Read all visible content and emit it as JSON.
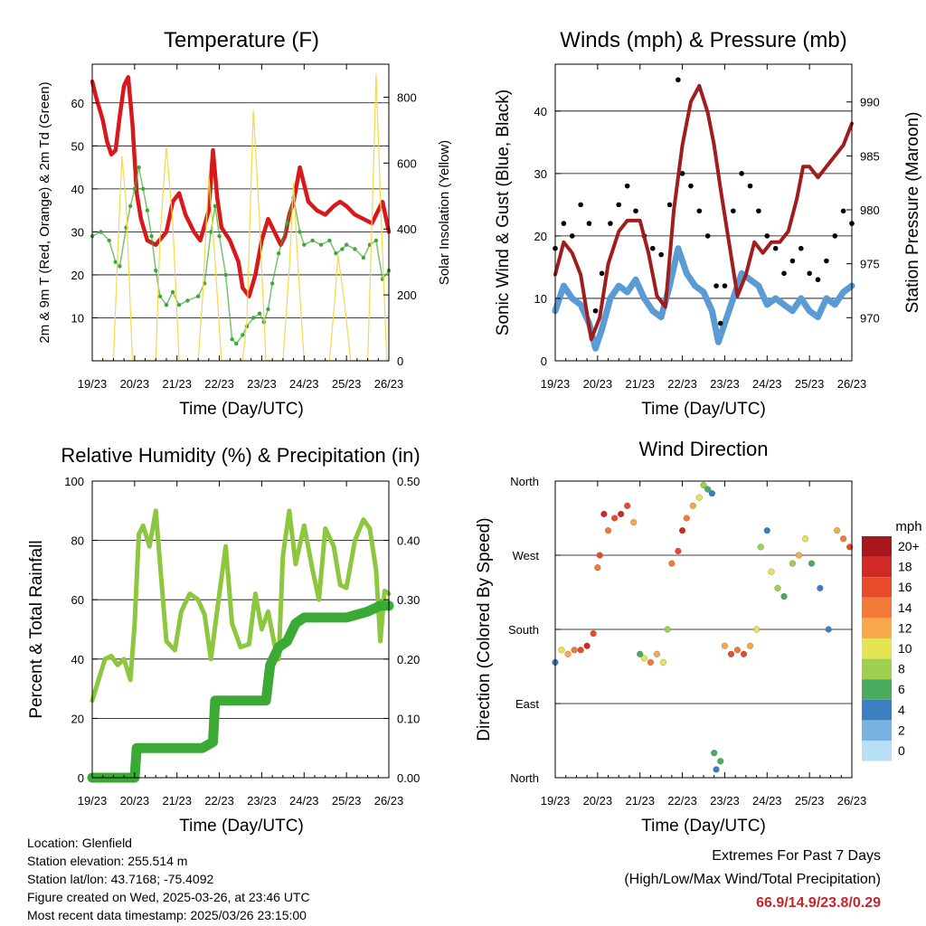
{
  "colors": {
    "temp": "#d7191c",
    "dewpoint": "#3aaa35",
    "solar": "#f6d848",
    "wind": "#5b9bd5",
    "gust": "#000000",
    "pressure": "#a11c1c",
    "rh": "#8dc63f",
    "precip": "#3aaa35",
    "extremes": "#c6262b"
  },
  "x_ticks": [
    "19/23",
    "20/23",
    "21/23",
    "22/23",
    "23/23",
    "24/23",
    "25/23",
    "26/23"
  ],
  "chart_data": [
    {
      "id": "temperature",
      "type": "line",
      "title": "Temperature (F)",
      "xlabel": "Time (Day/UTC)",
      "ylabel": "2m & 9m T (Red, Orange) & 2m Td (Green)",
      "y2label": "Solar Insolation (Yellow)",
      "xlim": [
        0,
        7
      ],
      "ylim": [
        0,
        69
      ],
      "y_ticks": [
        10,
        20,
        30,
        40,
        50,
        60
      ],
      "y2lim": [
        0,
        900
      ],
      "y2_ticks": [
        0,
        200,
        400,
        600,
        800
      ],
      "series": [
        {
          "key": "temperature",
          "axis": "left",
          "x": [
            0,
            0.1,
            0.25,
            0.35,
            0.45,
            0.55,
            0.65,
            0.75,
            0.85,
            0.95,
            1.05,
            1.15,
            1.3,
            1.5,
            1.75,
            1.9,
            2.05,
            2.2,
            2.4,
            2.55,
            2.75,
            2.85,
            2.95,
            3.05,
            3.25,
            3.45,
            3.55,
            3.7,
            3.85,
            4.0,
            4.15,
            4.3,
            4.45,
            4.55,
            4.65,
            4.75,
            4.9,
            5.1,
            5.3,
            5.5,
            5.7,
            5.85,
            6.0,
            6.2,
            6.4,
            6.6,
            6.75,
            6.85,
            7.0
          ],
          "y": [
            65,
            61,
            56,
            51,
            48,
            49,
            57,
            64,
            66,
            55,
            39,
            33,
            28,
            27,
            30,
            37,
            39,
            34,
            30,
            28,
            35,
            49,
            38,
            31,
            28,
            23,
            17,
            15,
            20,
            28,
            33,
            30,
            27,
            29,
            34,
            37,
            45,
            37,
            35,
            34,
            36,
            37,
            36,
            34,
            33,
            32,
            35,
            37,
            30
          ]
        },
        {
          "key": "dewpoint",
          "axis": "left",
          "x": [
            0,
            0.2,
            0.4,
            0.55,
            0.65,
            0.8,
            0.9,
            1.0,
            1.1,
            1.2,
            1.3,
            1.4,
            1.5,
            1.6,
            1.75,
            1.9,
            2.05,
            2.25,
            2.5,
            2.65,
            2.8,
            2.9,
            3.0,
            3.15,
            3.3,
            3.4,
            3.55,
            3.65,
            3.8,
            3.95,
            4.05,
            4.15,
            4.25,
            4.4,
            4.6,
            4.75,
            4.9,
            5.0,
            5.2,
            5.4,
            5.6,
            5.75,
            5.9,
            6.0,
            6.2,
            6.4,
            6.55,
            6.7,
            6.85,
            7.0
          ],
          "y": [
            29,
            30,
            28,
            23,
            22,
            31,
            36,
            40,
            45,
            40,
            35,
            29,
            21,
            15,
            13,
            16,
            13,
            14,
            15,
            18,
            30,
            36,
            29,
            20,
            5,
            4,
            6,
            8,
            10,
            11,
            9,
            12,
            18,
            25,
            32,
            38,
            30,
            27,
            28,
            27,
            28,
            25,
            26,
            27,
            26,
            24,
            27,
            28,
            19,
            21
          ]
        },
        {
          "key": "solar",
          "axis": "right",
          "x": [
            0,
            0.5,
            0.6,
            0.7,
            0.8,
            0.95,
            1.5,
            1.6,
            1.75,
            1.9,
            2.05,
            2.5,
            2.6,
            2.75,
            2.9,
            3.05,
            3.55,
            3.65,
            3.8,
            3.95,
            4.1,
            4.5,
            4.65,
            4.75,
            4.85,
            5.0,
            5.6,
            5.7,
            5.8,
            5.95,
            6.1,
            6.5,
            6.6,
            6.7,
            6.8,
            6.95,
            7.0
          ],
          "y": [
            0,
            0,
            320,
            620,
            480,
            0,
            0,
            380,
            650,
            420,
            0,
            0,
            180,
            560,
            300,
            0,
            0,
            120,
            760,
            420,
            0,
            0,
            280,
            540,
            300,
            0,
            0,
            150,
            320,
            180,
            0,
            0,
            420,
            870,
            500,
            0,
            0
          ]
        }
      ]
    },
    {
      "id": "winds",
      "type": "scatter",
      "title": "Winds (mph) & Pressure (mb)",
      "xlabel": "Time (Day/UTC)",
      "ylabel": "Sonic Wind & Gust (Blue, Black)",
      "y2label": "Station Pressure (Maroon)",
      "xlim": [
        0,
        7
      ],
      "ylim": [
        0,
        47.5
      ],
      "y_ticks": [
        0,
        10,
        20,
        30,
        40
      ],
      "y2lim": [
        966,
        993.5
      ],
      "y2_ticks": [
        970,
        975,
        980,
        985,
        990
      ],
      "series": [
        {
          "key": "wind",
          "axis": "left",
          "x": [
            0,
            0.2,
            0.4,
            0.6,
            0.8,
            0.95,
            1.1,
            1.3,
            1.5,
            1.7,
            1.9,
            2.1,
            2.3,
            2.5,
            2.7,
            2.9,
            3.1,
            3.3,
            3.5,
            3.7,
            3.85,
            4.0,
            4.2,
            4.4,
            4.6,
            4.8,
            5.0,
            5.2,
            5.4,
            5.6,
            5.8,
            6.0,
            6.2,
            6.4,
            6.6,
            6.8,
            7.0
          ],
          "y": [
            8,
            12,
            10,
            9,
            6,
            2,
            5,
            10,
            12,
            11,
            13,
            10,
            8,
            7,
            12,
            18,
            14,
            12,
            11,
            8,
            3,
            6,
            10,
            14,
            13,
            12,
            9,
            10,
            9,
            8,
            10,
            8,
            7,
            10,
            9,
            11,
            12
          ]
        },
        {
          "key": "gust",
          "axis": "left",
          "x": [
            0,
            0.2,
            0.4,
            0.6,
            0.8,
            0.95,
            1.1,
            1.3,
            1.5,
            1.7,
            1.9,
            2.1,
            2.3,
            2.5,
            2.7,
            2.9,
            3.0,
            3.2,
            3.4,
            3.6,
            3.8,
            3.9,
            4.0,
            4.2,
            4.4,
            4.6,
            4.8,
            5.0,
            5.2,
            5.4,
            5.6,
            5.8,
            6.0,
            6.2,
            6.4,
            6.6,
            6.8,
            7.0
          ],
          "y": [
            18,
            22,
            20,
            25,
            22,
            8,
            14,
            22,
            25,
            28,
            24,
            20,
            18,
            17,
            25,
            45,
            30,
            28,
            24,
            20,
            12,
            6,
            12,
            24,
            30,
            28,
            24,
            20,
            18,
            14,
            16,
            18,
            14,
            13,
            16,
            20,
            24,
            22
          ]
        },
        {
          "key": "pressure",
          "axis": "right",
          "x": [
            0,
            0.2,
            0.4,
            0.6,
            0.85,
            1.05,
            1.25,
            1.5,
            1.7,
            2.0,
            2.2,
            2.4,
            2.6,
            2.8,
            3.0,
            3.2,
            3.4,
            3.6,
            3.75,
            3.9,
            4.1,
            4.3,
            4.5,
            4.7,
            4.9,
            5.1,
            5.3,
            5.5,
            5.7,
            5.85,
            6.0,
            6.2,
            6.4,
            6.6,
            6.8,
            7.0
          ],
          "y": [
            974,
            977,
            976,
            974,
            968,
            970,
            975,
            978,
            979,
            979,
            976,
            972,
            971,
            980,
            986,
            990,
            991.5,
            989,
            986,
            982,
            977,
            972,
            974,
            977,
            976,
            977,
            977,
            978,
            981,
            984,
            984,
            983,
            984,
            985,
            986,
            988
          ]
        }
      ]
    },
    {
      "id": "humidity",
      "type": "line",
      "title": "Relative Humidity (%) & Precipitation (in)",
      "xlabel": "Time (Day/UTC)",
      "ylabel": "Percent & Total Rainfall",
      "xlim": [
        0,
        7
      ],
      "ylim": [
        0,
        100
      ],
      "y_ticks": [
        0,
        20,
        40,
        60,
        80,
        100
      ],
      "y2lim": [
        0,
        0.5
      ],
      "y2_ticks": [
        "0.00",
        "0.10",
        "0.20",
        "0.30",
        "0.40",
        "0.50"
      ],
      "series": [
        {
          "key": "rh",
          "axis": "left",
          "x": [
            0,
            0.15,
            0.3,
            0.45,
            0.6,
            0.75,
            0.9,
            1.0,
            1.1,
            1.2,
            1.35,
            1.5,
            1.6,
            1.75,
            1.95,
            2.1,
            2.3,
            2.5,
            2.65,
            2.8,
            3.0,
            3.15,
            3.3,
            3.5,
            3.7,
            3.85,
            4.0,
            4.15,
            4.3,
            4.4,
            4.5,
            4.65,
            4.8,
            5.0,
            5.2,
            5.35,
            5.5,
            5.7,
            5.85,
            6.0,
            6.2,
            6.4,
            6.55,
            6.7,
            6.8,
            6.9,
            7.0
          ],
          "y": [
            26,
            33,
            40,
            41,
            38,
            40,
            33,
            52,
            82,
            85,
            78,
            90,
            72,
            46,
            43,
            56,
            62,
            60,
            55,
            40,
            62,
            78,
            52,
            44,
            45,
            62,
            50,
            56,
            45,
            40,
            75,
            90,
            72,
            85,
            70,
            60,
            84,
            78,
            65,
            64,
            80,
            87,
            84,
            70,
            46,
            63,
            62
          ]
        },
        {
          "key": "precip",
          "axis": "right",
          "x": [
            0,
            0.9,
            1.0,
            1.05,
            1.3,
            2.6,
            2.85,
            2.9,
            3.5,
            3.8,
            4.1,
            4.2,
            4.4,
            4.6,
            4.8,
            5.0,
            5.5,
            6.0,
            6.5,
            6.8,
            7.0
          ],
          "y": [
            0,
            0,
            0,
            0.05,
            0.05,
            0.05,
            0.06,
            0.13,
            0.13,
            0.13,
            0.13,
            0.19,
            0.22,
            0.23,
            0.26,
            0.27,
            0.27,
            0.27,
            0.28,
            0.29,
            0.29
          ]
        }
      ]
    },
    {
      "id": "wind_direction",
      "type": "scatter",
      "title": "Wind Direction",
      "xlabel": "Time (Day/UTC)",
      "ylabel": "Direction (Colored By Speed)",
      "xlim": [
        0,
        7
      ],
      "ylim": [
        0,
        360
      ],
      "y_tick_labels": [
        "North",
        "East",
        "South",
        "West",
        "North"
      ],
      "y_tick_values": [
        0,
        90,
        180,
        270,
        360
      ],
      "legend_title": "mph",
      "legend_labels": [
        "20+",
        "18",
        "16",
        "14",
        "12",
        "10",
        "8",
        "6",
        "4",
        "2",
        "0"
      ],
      "legend_colors": [
        "#a8171c",
        "#cf2a27",
        "#e84b2c",
        "#f37a36",
        "#f9a94b",
        "#e5e455",
        "#9ecf4f",
        "#4aaa5f",
        "#3b7fc0",
        "#79b3e1",
        "#b9dff5"
      ],
      "series": [
        {
          "key": "direction",
          "x": [
            0,
            0.15,
            0.3,
            0.45,
            0.6,
            0.75,
            0.9,
            1.0,
            1.05,
            1.15,
            1.25,
            1.4,
            1.55,
            1.7,
            1.85,
            2.0,
            2.1,
            2.25,
            2.4,
            2.55,
            2.65,
            2.75,
            2.9,
            3.0,
            3.1,
            3.25,
            3.4,
            3.5,
            3.6,
            3.7,
            3.75,
            3.8,
            3.9,
            4.0,
            4.15,
            4.3,
            4.45,
            4.6,
            4.75,
            4.85,
            5.0,
            5.1,
            5.25,
            5.4,
            5.6,
            5.75,
            5.9,
            6.05,
            6.25,
            6.45,
            6.65,
            6.8,
            6.95
          ],
          "y": [
            140,
            155,
            150,
            155,
            155,
            160,
            175,
            255,
            270,
            320,
            300,
            315,
            320,
            330,
            310,
            150,
            145,
            140,
            150,
            140,
            180,
            260,
            275,
            300,
            315,
            330,
            340,
            355,
            350,
            345,
            30,
            10,
            20,
            160,
            150,
            155,
            150,
            160,
            180,
            280,
            300,
            250,
            230,
            220,
            260,
            270,
            290,
            260,
            230,
            180,
            300,
            290,
            280
          ],
          "speed": [
            4,
            10,
            12,
            14,
            16,
            18,
            16,
            14,
            16,
            18,
            14,
            16,
            18,
            16,
            12,
            6,
            10,
            14,
            12,
            10,
            8,
            14,
            16,
            18,
            14,
            12,
            10,
            8,
            6,
            4,
            6,
            4,
            6,
            12,
            16,
            14,
            16,
            12,
            10,
            8,
            4,
            10,
            8,
            6,
            8,
            12,
            10,
            6,
            4,
            4,
            12,
            14,
            16
          ]
        }
      ]
    }
  ],
  "info": {
    "location": "Location: Glenfield",
    "elevation": "Station elevation: 255.514 m",
    "latlon": "Station lat/lon: 43.7168; -75.4092",
    "created": "Figure created on Wed, 2025-03-26, at 23:46 UTC",
    "recent": "Most recent data timestamp: 2025/03/26 23:15:00"
  },
  "extremes": {
    "title": "Extremes For Past 7 Days",
    "subtitle": "(High/Low/Max Wind/Total Precipitation)",
    "values": "66.9/14.9/23.8/0.29"
  }
}
